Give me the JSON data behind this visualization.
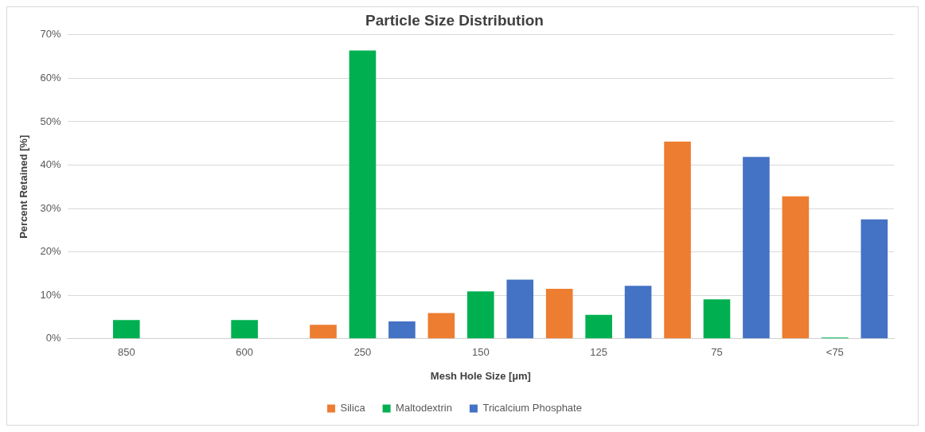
{
  "chart_data": {
    "type": "bar",
    "title": "Particle Size Distribution",
    "xlabel": "Mesh Hole Size [µm]",
    "ylabel": "Percent Retained [%]",
    "categories": [
      "850",
      "600",
      "250",
      "150",
      "125",
      "75",
      "<75"
    ],
    "series": [
      {
        "name": "Silica",
        "color": "#ed7d31",
        "values": [
          0,
          0,
          3.2,
          5.9,
          11.5,
          45.4,
          32.8
        ]
      },
      {
        "name": "Maltodextrin",
        "color": "#00b050",
        "values": [
          4.3,
          4.3,
          66.4,
          10.9,
          5.5,
          9.1,
          0.3
        ]
      },
      {
        "name": "Tricalcium Phosphate",
        "color": "#4472c4",
        "values": [
          0,
          0,
          4.0,
          13.6,
          12.2,
          41.9,
          27.5
        ]
      }
    ],
    "ylim": [
      0,
      70
    ],
    "yticks": [
      {
        "value": 0,
        "label": "0%"
      },
      {
        "value": 10,
        "label": "10%"
      },
      {
        "value": 20,
        "label": "20%"
      },
      {
        "value": 30,
        "label": "30%"
      },
      {
        "value": 40,
        "label": "40%"
      },
      {
        "value": 50,
        "label": "50%"
      },
      {
        "value": 60,
        "label": "60%"
      },
      {
        "value": 70,
        "label": "70%"
      }
    ],
    "grid": "y",
    "legend": "bottom"
  }
}
